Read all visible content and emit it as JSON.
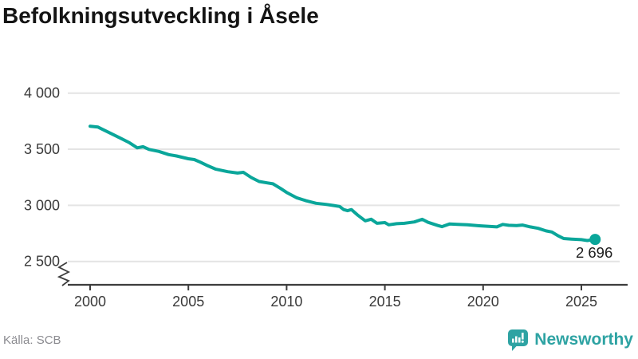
{
  "title": "Befolkningsutveckling i Åsele",
  "chart_data": {
    "type": "line",
    "title": "Befolkningsutveckling i Åsele",
    "series_name": "Befolkning",
    "x": [
      2000.0,
      2000.4,
      2001.0,
      2001.5,
      2002.0,
      2002.4,
      2002.7,
      2003.0,
      2003.5,
      2004.0,
      2004.4,
      2005.0,
      2005.3,
      2005.6,
      2006.0,
      2006.4,
      2007.0,
      2007.5,
      2007.8,
      2008.2,
      2008.6,
      2009.0,
      2009.3,
      2009.7,
      2010.0,
      2010.5,
      2011.0,
      2011.5,
      2012.0,
      2012.4,
      2012.7,
      2012.9,
      2013.1,
      2013.3,
      2013.6,
      2014.0,
      2014.3,
      2014.6,
      2015.0,
      2015.2,
      2015.6,
      2016.0,
      2016.5,
      2016.9,
      2017.2,
      2017.7,
      2017.9,
      2018.3,
      2018.7,
      2019.2,
      2019.8,
      2020.3,
      2020.7,
      2021.0,
      2021.3,
      2021.7,
      2022.0,
      2022.4,
      2022.8,
      2023.2,
      2023.5,
      2023.8,
      2024.1,
      2024.5,
      2025.0,
      2025.3,
      2025.7
    ],
    "values": [
      3705,
      3697,
      3645,
      3602,
      3558,
      3512,
      3522,
      3498,
      3480,
      3452,
      3440,
      3415,
      3408,
      3385,
      3352,
      3322,
      3300,
      3288,
      3294,
      3248,
      3212,
      3200,
      3192,
      3150,
      3115,
      3068,
      3040,
      3018,
      3008,
      2998,
      2990,
      2962,
      2952,
      2962,
      2915,
      2862,
      2876,
      2840,
      2846,
      2826,
      2836,
      2840,
      2852,
      2875,
      2848,
      2820,
      2810,
      2834,
      2830,
      2826,
      2818,
      2812,
      2808,
      2830,
      2822,
      2820,
      2824,
      2808,
      2795,
      2772,
      2762,
      2730,
      2704,
      2699,
      2694,
      2686,
      2696
    ],
    "x_ticks": [
      2000,
      2005,
      2010,
      2015,
      2020,
      2025
    ],
    "x_tick_labels": [
      "2000",
      "2005",
      "2010",
      "2015",
      "2020",
      "2025"
    ],
    "y_ticks": [
      4000,
      3500,
      3000,
      2500
    ],
    "y_tick_labels": [
      "4 000",
      "3 500",
      "3 000",
      "2 500"
    ],
    "ylim": [
      2500,
      4000
    ],
    "axis_break": true,
    "grid": "horizontal",
    "line_color": "#0aa69a",
    "grid_color": "#e4e4e4",
    "axis_color": "#3d3d3d",
    "tick_label_color": "#3a3a3a",
    "last_point_label": "2 696",
    "last_value": 2696
  },
  "footer": {
    "source": "Källa: SCB",
    "brand": "Newsworthy",
    "brand_color": "#2ea3a3"
  }
}
